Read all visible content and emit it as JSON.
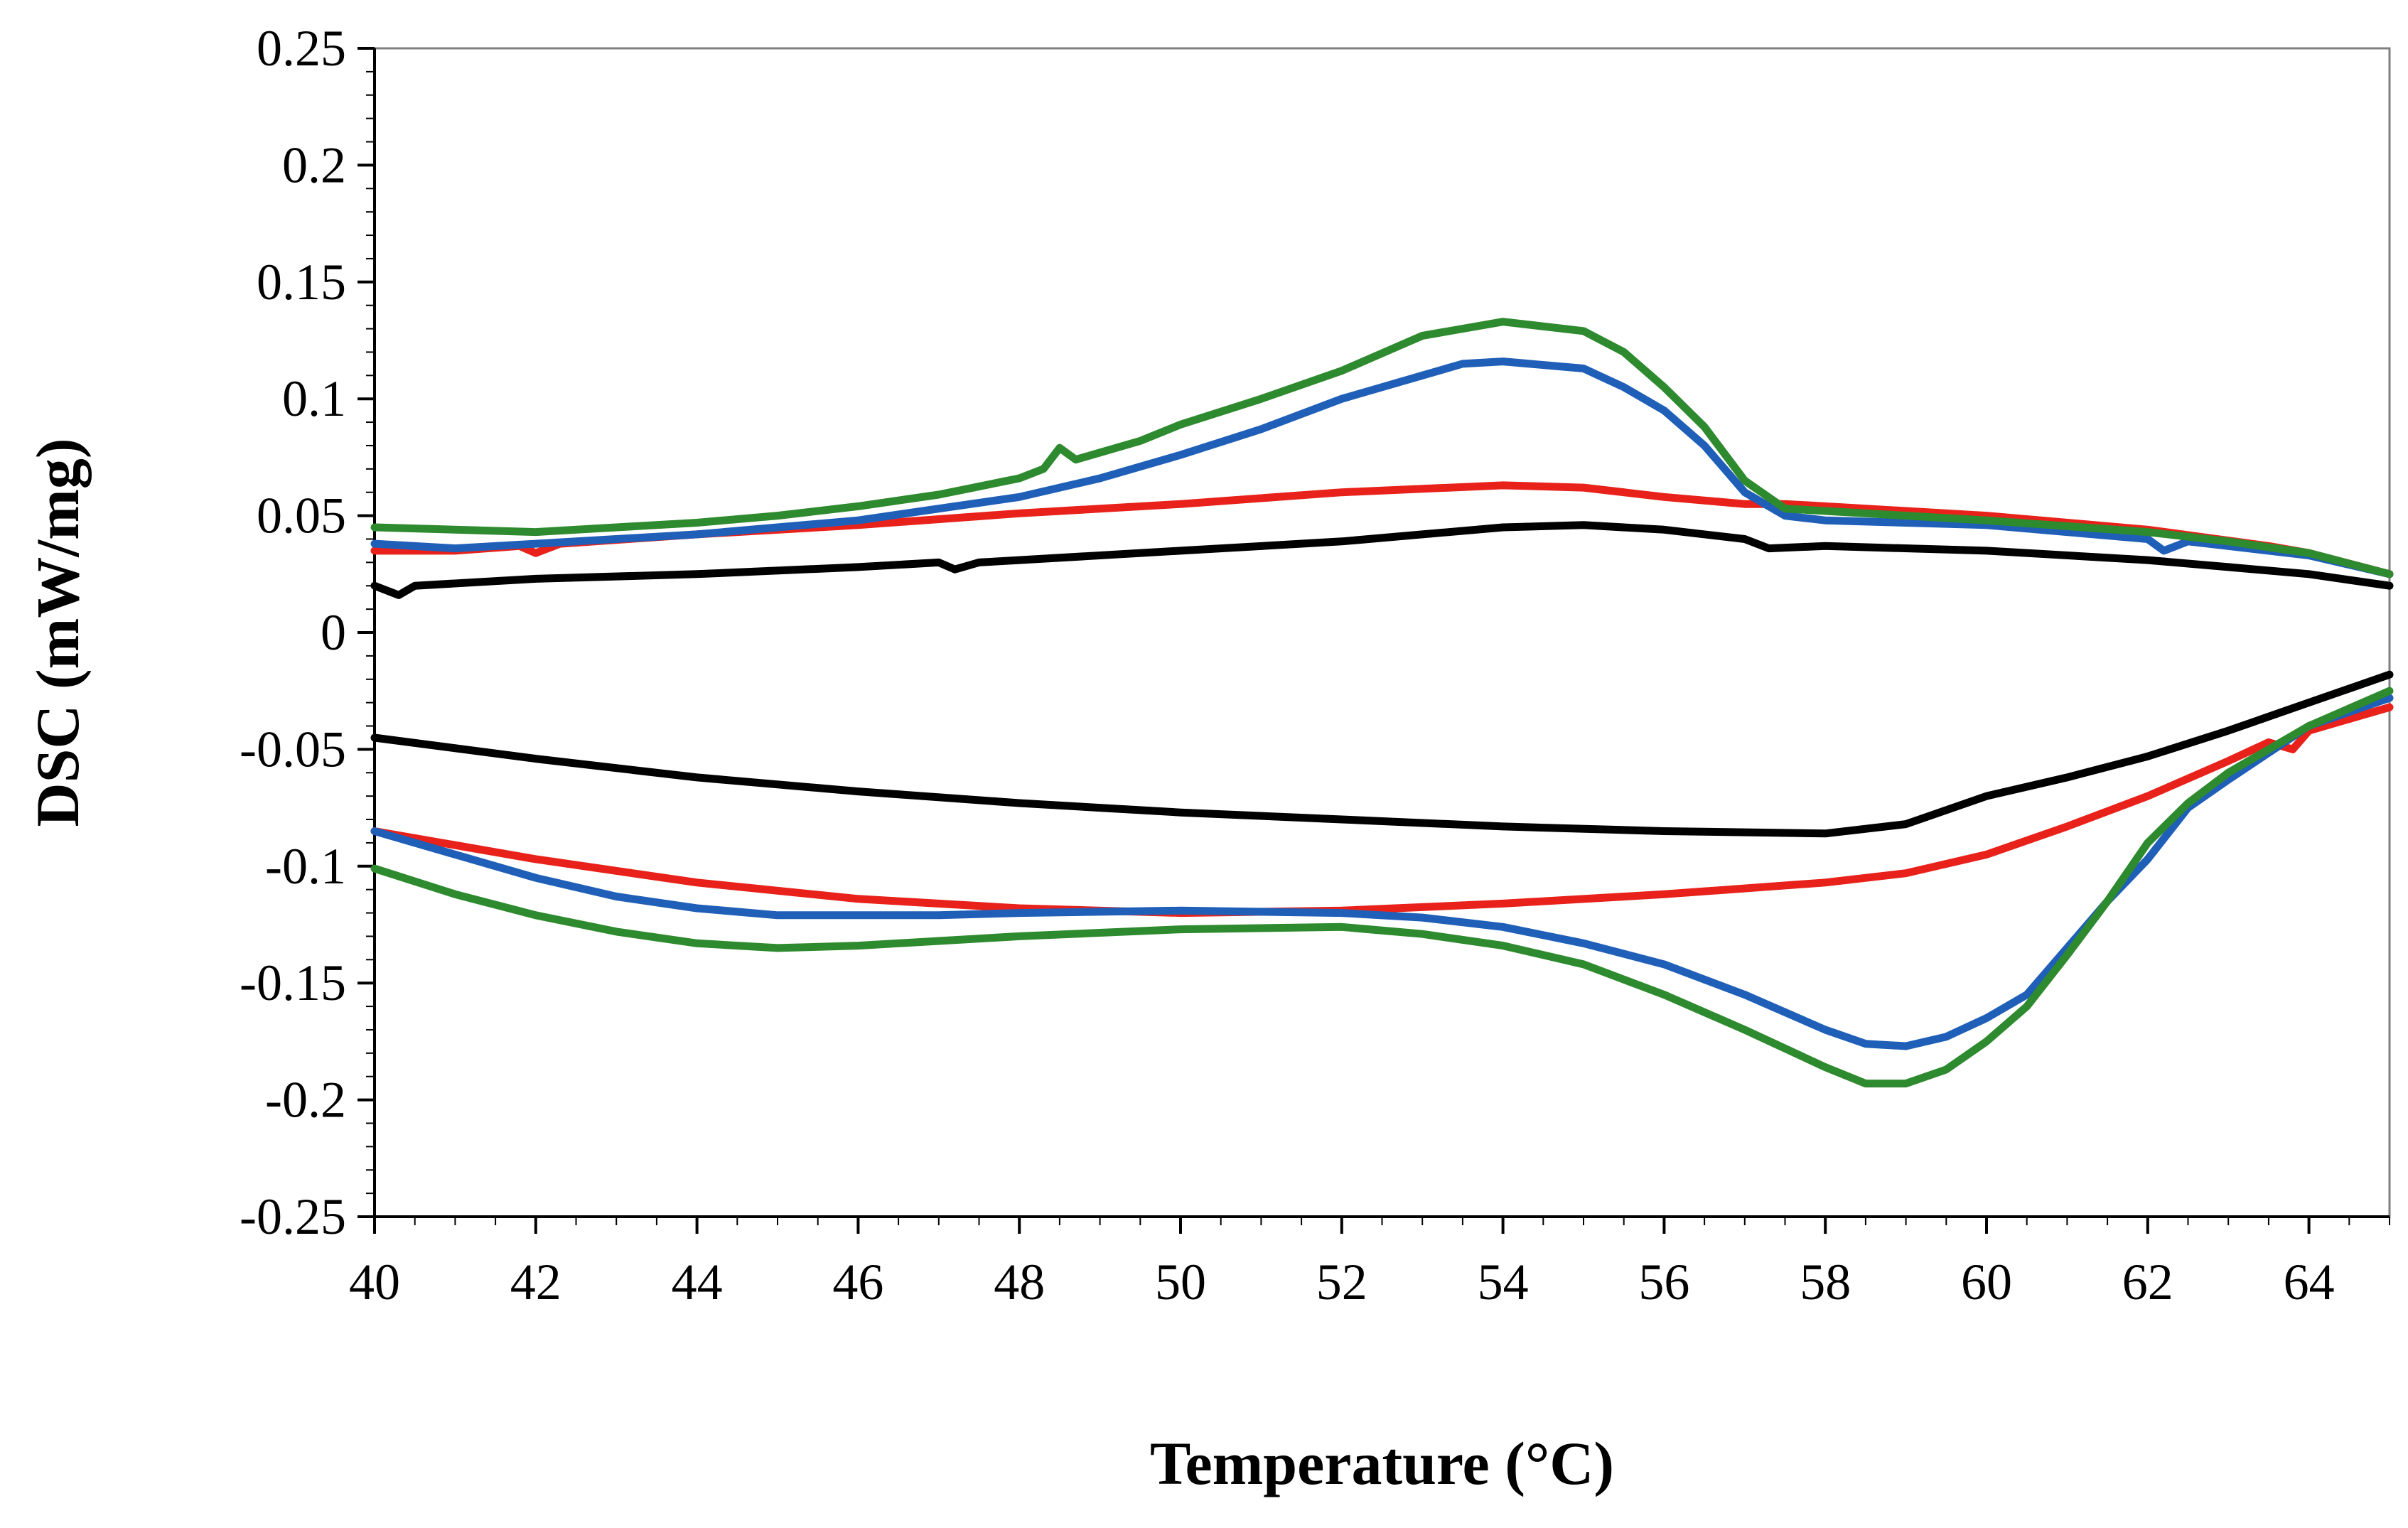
{
  "chart_data": {
    "type": "line",
    "title": "",
    "xlabel": "Temperature (°C)",
    "ylabel": "DSC (mW/mg)",
    "xlim": [
      40,
      65
    ],
    "ylim": [
      -0.25,
      0.25
    ],
    "x_ticks": [
      40,
      42,
      44,
      46,
      48,
      50,
      52,
      54,
      56,
      58,
      60,
      62,
      64
    ],
    "x_tick_labels": [
      "40",
      "42",
      "44",
      "46",
      "48",
      "50",
      "52",
      "54",
      "56",
      "58",
      "60",
      "62",
      "64"
    ],
    "y_ticks": [
      0.25,
      0.2,
      0.15,
      0.1,
      0.05,
      0,
      -0.05,
      -0.1,
      -0.15,
      -0.2,
      -0.25
    ],
    "y_tick_labels": [
      "0.25",
      "0.2",
      "0.15",
      "0.1",
      "0.05",
      "0",
      "-0.05",
      "-0.1",
      "-0.15",
      "-0.2",
      "-0.25"
    ],
    "grid": false,
    "legend": "none",
    "series": [
      {
        "color": "#000000",
        "points": [
          [
            40,
            0.02
          ],
          [
            40.3,
            0.016
          ],
          [
            40.5,
            0.02
          ],
          [
            42,
            0.023
          ],
          [
            44,
            0.025
          ],
          [
            46,
            0.028
          ],
          [
            47,
            0.03
          ],
          [
            47.2,
            0.027
          ],
          [
            47.5,
            0.03
          ],
          [
            48,
            0.031
          ],
          [
            50,
            0.035
          ],
          [
            52,
            0.039
          ],
          [
            53,
            0.042
          ],
          [
            54,
            0.045
          ],
          [
            55,
            0.046
          ],
          [
            56,
            0.044
          ],
          [
            57,
            0.04
          ],
          [
            57.3,
            0.036
          ],
          [
            58,
            0.037
          ],
          [
            60,
            0.035
          ],
          [
            62,
            0.031
          ],
          [
            63,
            0.028
          ],
          [
            64,
            0.025
          ],
          [
            65,
            0.02
          ]
        ]
      },
      {
        "color": "#e8221b",
        "points": [
          [
            40,
            0.035
          ],
          [
            41,
            0.035
          ],
          [
            41.8,
            0.037
          ],
          [
            42,
            0.034
          ],
          [
            42.3,
            0.038
          ],
          [
            44,
            0.042
          ],
          [
            46,
            0.046
          ],
          [
            48,
            0.051
          ],
          [
            50,
            0.055
          ],
          [
            52,
            0.06
          ],
          [
            54,
            0.063
          ],
          [
            55,
            0.062
          ],
          [
            56,
            0.058
          ],
          [
            57,
            0.055
          ],
          [
            57.5,
            0.055
          ],
          [
            58,
            0.054
          ],
          [
            60,
            0.05
          ],
          [
            62,
            0.044
          ],
          [
            63.5,
            0.037
          ],
          [
            64,
            0.034
          ],
          [
            65,
            0.025
          ]
        ]
      },
      {
        "color": "#1f5fb8",
        "points": [
          [
            40,
            0.038
          ],
          [
            41,
            0.036
          ],
          [
            42,
            0.038
          ],
          [
            44,
            0.042
          ],
          [
            46,
            0.048
          ],
          [
            47,
            0.053
          ],
          [
            48,
            0.058
          ],
          [
            49,
            0.066
          ],
          [
            50,
            0.076
          ],
          [
            51,
            0.087
          ],
          [
            52,
            0.1
          ],
          [
            53,
            0.11
          ],
          [
            53.5,
            0.115
          ],
          [
            54,
            0.116
          ],
          [
            55,
            0.113
          ],
          [
            55.5,
            0.105
          ],
          [
            56,
            0.095
          ],
          [
            56.5,
            0.08
          ],
          [
            57,
            0.06
          ],
          [
            57.5,
            0.05
          ],
          [
            58,
            0.048
          ],
          [
            60,
            0.046
          ],
          [
            61,
            0.043
          ],
          [
            62,
            0.04
          ],
          [
            62.2,
            0.035
          ],
          [
            62.5,
            0.039
          ],
          [
            63,
            0.037
          ],
          [
            64,
            0.033
          ],
          [
            65,
            0.025
          ]
        ]
      },
      {
        "color": "#2e8a2e",
        "points": [
          [
            40,
            0.045
          ],
          [
            42,
            0.043
          ],
          [
            43,
            0.045
          ],
          [
            44,
            0.047
          ],
          [
            45,
            0.05
          ],
          [
            46,
            0.054
          ],
          [
            47,
            0.059
          ],
          [
            48,
            0.066
          ],
          [
            48.3,
            0.07
          ],
          [
            48.5,
            0.079
          ],
          [
            48.7,
            0.074
          ],
          [
            49,
            0.077
          ],
          [
            49.5,
            0.082
          ],
          [
            50,
            0.089
          ],
          [
            51,
            0.1
          ],
          [
            52,
            0.112
          ],
          [
            53,
            0.127
          ],
          [
            54,
            0.133
          ],
          [
            55,
            0.129
          ],
          [
            55.5,
            0.12
          ],
          [
            56,
            0.105
          ],
          [
            56.5,
            0.088
          ],
          [
            57,
            0.065
          ],
          [
            57.5,
            0.053
          ],
          [
            58,
            0.052
          ],
          [
            60,
            0.048
          ],
          [
            62,
            0.043
          ],
          [
            63,
            0.039
          ],
          [
            64,
            0.034
          ],
          [
            65,
            0.025
          ]
        ]
      },
      {
        "color": "#000000",
        "points": [
          [
            40,
            -0.045
          ],
          [
            42,
            -0.054
          ],
          [
            44,
            -0.062
          ],
          [
            46,
            -0.068
          ],
          [
            48,
            -0.073
          ],
          [
            50,
            -0.077
          ],
          [
            52,
            -0.08
          ],
          [
            54,
            -0.083
          ],
          [
            56,
            -0.085
          ],
          [
            58,
            -0.086
          ],
          [
            59,
            -0.082
          ],
          [
            60,
            -0.07
          ],
          [
            61,
            -0.062
          ],
          [
            62,
            -0.053
          ],
          [
            63,
            -0.042
          ],
          [
            64,
            -0.03
          ],
          [
            65,
            -0.018
          ]
        ]
      },
      {
        "color": "#e8221b",
        "points": [
          [
            40,
            -0.085
          ],
          [
            42,
            -0.097
          ],
          [
            44,
            -0.107
          ],
          [
            46,
            -0.114
          ],
          [
            48,
            -0.118
          ],
          [
            50,
            -0.12
          ],
          [
            52,
            -0.119
          ],
          [
            54,
            -0.116
          ],
          [
            56,
            -0.112
          ],
          [
            58,
            -0.107
          ],
          [
            59,
            -0.103
          ],
          [
            60,
            -0.095
          ],
          [
            61,
            -0.083
          ],
          [
            62,
            -0.07
          ],
          [
            63,
            -0.055
          ],
          [
            63.5,
            -0.047
          ],
          [
            63.8,
            -0.05
          ],
          [
            64,
            -0.042
          ],
          [
            65,
            -0.032
          ]
        ]
      },
      {
        "color": "#1f5fb8",
        "points": [
          [
            40,
            -0.085
          ],
          [
            41,
            -0.095
          ],
          [
            42,
            -0.105
          ],
          [
            43,
            -0.113
          ],
          [
            44,
            -0.118
          ],
          [
            45,
            -0.121
          ],
          [
            46,
            -0.121
          ],
          [
            47,
            -0.121
          ],
          [
            48,
            -0.12
          ],
          [
            50,
            -0.119
          ],
          [
            52,
            -0.12
          ],
          [
            53,
            -0.122
          ],
          [
            54,
            -0.126
          ],
          [
            55,
            -0.133
          ],
          [
            56,
            -0.142
          ],
          [
            57,
            -0.155
          ],
          [
            58,
            -0.17
          ],
          [
            58.5,
            -0.176
          ],
          [
            59,
            -0.177
          ],
          [
            59.5,
            -0.173
          ],
          [
            60,
            -0.165
          ],
          [
            60.5,
            -0.155
          ],
          [
            61,
            -0.135
          ],
          [
            61.5,
            -0.115
          ],
          [
            62,
            -0.097
          ],
          [
            62.5,
            -0.075
          ],
          [
            63,
            -0.063
          ],
          [
            64,
            -0.04
          ],
          [
            65,
            -0.028
          ]
        ]
      },
      {
        "color": "#2e8a2e",
        "points": [
          [
            40,
            -0.101
          ],
          [
            41,
            -0.112
          ],
          [
            42,
            -0.121
          ],
          [
            43,
            -0.128
          ],
          [
            44,
            -0.133
          ],
          [
            45,
            -0.135
          ],
          [
            46,
            -0.134
          ],
          [
            47,
            -0.132
          ],
          [
            48,
            -0.13
          ],
          [
            50,
            -0.127
          ],
          [
            52,
            -0.126
          ],
          [
            53,
            -0.129
          ],
          [
            54,
            -0.134
          ],
          [
            55,
            -0.142
          ],
          [
            56,
            -0.155
          ],
          [
            57,
            -0.17
          ],
          [
            58,
            -0.186
          ],
          [
            58.5,
            -0.193
          ],
          [
            59,
            -0.193
          ],
          [
            59.5,
            -0.187
          ],
          [
            60,
            -0.175
          ],
          [
            60.5,
            -0.16
          ],
          [
            61,
            -0.138
          ],
          [
            61.5,
            -0.115
          ],
          [
            62,
            -0.09
          ],
          [
            62.5,
            -0.073
          ],
          [
            63,
            -0.06
          ],
          [
            64,
            -0.04
          ],
          [
            65,
            -0.025
          ]
        ]
      }
    ]
  }
}
